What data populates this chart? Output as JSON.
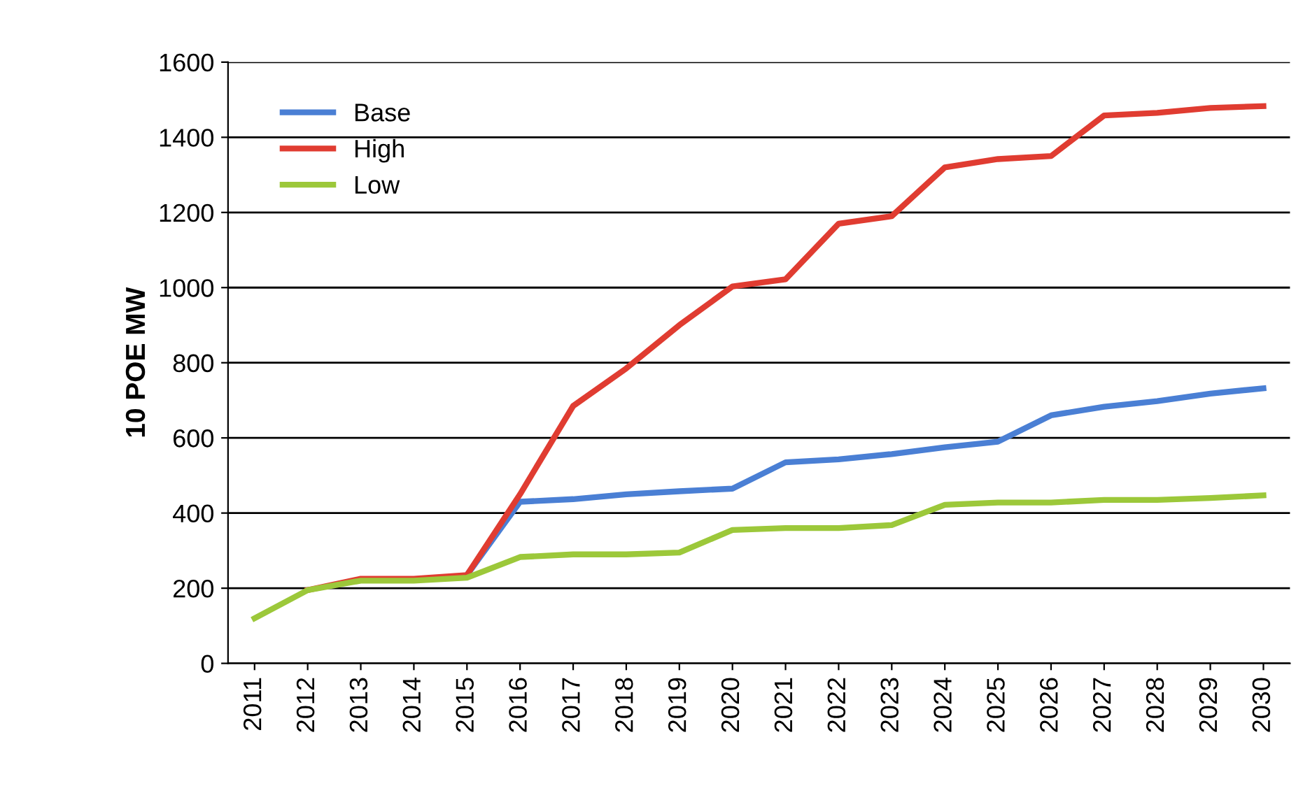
{
  "chart_data": {
    "type": "line",
    "ylabel": "10 POE MW",
    "categories": [
      "2011",
      "2012",
      "2013",
      "2014",
      "2015",
      "2016",
      "2017",
      "2018",
      "2019",
      "2020",
      "2021",
      "2022",
      "2023",
      "2024",
      "2025",
      "2026",
      "2027",
      "2028",
      "2029",
      "2030"
    ],
    "series": [
      {
        "name": "Base",
        "color": "#4a7fd4",
        "values": [
          null,
          null,
          null,
          null,
          235,
          430,
          437,
          450,
          458,
          465,
          535,
          543,
          557,
          575,
          590,
          660,
          683,
          698,
          718,
          732
        ]
      },
      {
        "name": "High",
        "color": "#e03c31",
        "values": [
          null,
          195,
          225,
          225,
          235,
          450,
          685,
          785,
          900,
          1003,
          1022,
          1170,
          1190,
          1320,
          1342,
          1350,
          1458,
          1465,
          1478,
          1483
        ]
      },
      {
        "name": "Low",
        "color": "#9cc83a",
        "values": [
          120,
          195,
          220,
          220,
          228,
          283,
          290,
          290,
          295,
          355,
          360,
          360,
          368,
          422,
          428,
          428,
          435,
          435,
          440,
          447
        ]
      }
    ],
    "ylim": [
      0,
      1600
    ],
    "yticks": [
      0,
      200,
      400,
      600,
      800,
      1000,
      1200,
      1400,
      1600
    ],
    "grid": "y",
    "legend": "top left",
    "marker": "none",
    "line_style": "solid"
  }
}
